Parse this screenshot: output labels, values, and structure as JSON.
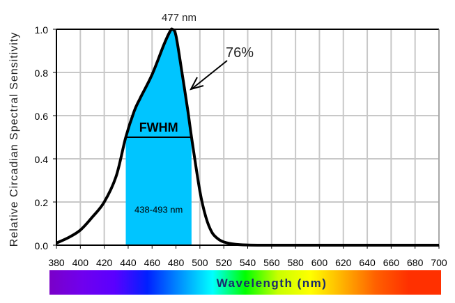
{
  "chart_data": {
    "type": "area",
    "title": "",
    "xlabel": "Wavelength (nm)",
    "ylabel": "Relative Circadian Spectral Sensitivity",
    "xlim": [
      380,
      700
    ],
    "ylim": [
      0,
      1.0
    ],
    "grid": true,
    "xticks": [
      "380",
      "400",
      "420",
      "440",
      "460",
      "480",
      "500",
      "520",
      "540",
      "560",
      "580",
      "600",
      "620",
      "640",
      "660",
      "680",
      "700"
    ],
    "yticks": [
      "0.0",
      "0.2",
      "0.4",
      "0.6",
      "0.8",
      "1.0"
    ],
    "series": [
      {
        "x": [
          380,
          390,
          400,
          410,
          420,
          430,
          438,
          445,
          450,
          460,
          470,
          475,
          477,
          480,
          485,
          490,
          493,
          500,
          505,
          510,
          515,
          520,
          530,
          540,
          560,
          600,
          700
        ],
        "y": [
          0.01,
          0.035,
          0.07,
          0.13,
          0.2,
          0.32,
          0.5,
          0.62,
          0.68,
          0.79,
          0.93,
          0.99,
          1.0,
          0.97,
          0.8,
          0.62,
          0.5,
          0.25,
          0.13,
          0.06,
          0.03,
          0.015,
          0.004,
          0.001,
          0,
          0,
          0
        ]
      }
    ],
    "fwhm": {
      "label": "FWHM",
      "range_label": "438-493 nm",
      "low": 438,
      "high": 493,
      "level": 0.5
    },
    "annotations": {
      "peak_label": "477 nm",
      "peak": 477,
      "percent_label": "76%"
    },
    "colors": {
      "fill": "#00c5ff",
      "curve": "#000000",
      "grid": "#c8c8c8",
      "axis_label": "#1a2a6c"
    },
    "colorbar": [
      "#7a00c8",
      "#7000ee",
      "#5a00ff",
      "#0020ff",
      "#0090ff",
      "#00ffff",
      "#00ff00",
      "#c8ff00",
      "#ffff00",
      "#ffb000",
      "#ff6000",
      "#ff3000",
      "#ff3000"
    ]
  }
}
